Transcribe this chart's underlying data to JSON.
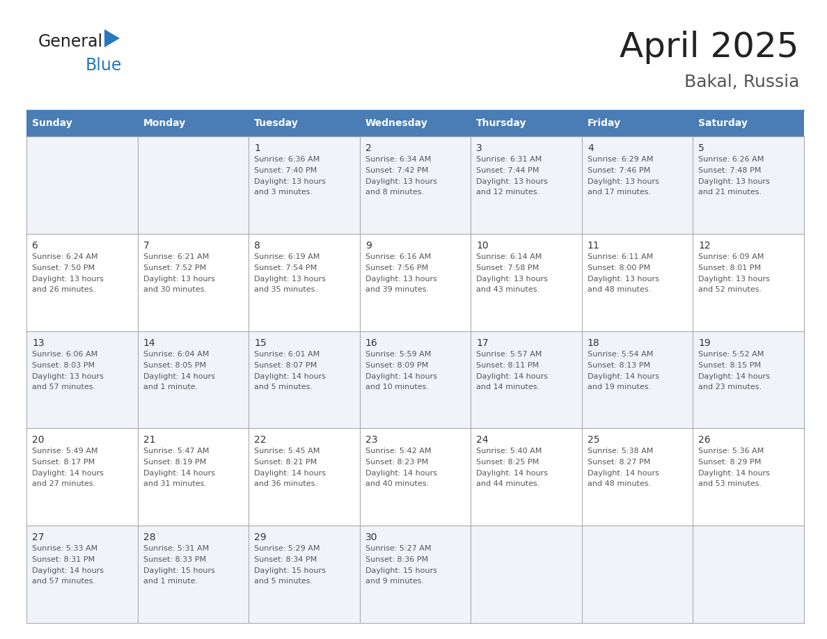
{
  "title": "April 2025",
  "subtitle": "Bakal, Russia",
  "header_bg": "#4a7db5",
  "header_text": "#ffffff",
  "odd_row_bg": "#f0f4f8",
  "even_row_bg": "#ffffff",
  "day_names": [
    "Sunday",
    "Monday",
    "Tuesday",
    "Wednesday",
    "Thursday",
    "Friday",
    "Saturday"
  ],
  "title_color": "#222222",
  "subtitle_color": "#555555",
  "day_number_color": "#333333",
  "cell_text_color": "#555555",
  "general_text_color": "#222222",
  "blue_color": "#2878c0",
  "weeks": [
    [
      {
        "day": null,
        "sunrise": null,
        "sunset": null,
        "daylight": null
      },
      {
        "day": null,
        "sunrise": null,
        "sunset": null,
        "daylight": null
      },
      {
        "day": 1,
        "sunrise": "6:36 AM",
        "sunset": "7:40 PM",
        "daylight": "13 hours\nand 3 minutes."
      },
      {
        "day": 2,
        "sunrise": "6:34 AM",
        "sunset": "7:42 PM",
        "daylight": "13 hours\nand 8 minutes."
      },
      {
        "day": 3,
        "sunrise": "6:31 AM",
        "sunset": "7:44 PM",
        "daylight": "13 hours\nand 12 minutes."
      },
      {
        "day": 4,
        "sunrise": "6:29 AM",
        "sunset": "7:46 PM",
        "daylight": "13 hours\nand 17 minutes."
      },
      {
        "day": 5,
        "sunrise": "6:26 AM",
        "sunset": "7:48 PM",
        "daylight": "13 hours\nand 21 minutes."
      }
    ],
    [
      {
        "day": 6,
        "sunrise": "6:24 AM",
        "sunset": "7:50 PM",
        "daylight": "13 hours\nand 26 minutes."
      },
      {
        "day": 7,
        "sunrise": "6:21 AM",
        "sunset": "7:52 PM",
        "daylight": "13 hours\nand 30 minutes."
      },
      {
        "day": 8,
        "sunrise": "6:19 AM",
        "sunset": "7:54 PM",
        "daylight": "13 hours\nand 35 minutes."
      },
      {
        "day": 9,
        "sunrise": "6:16 AM",
        "sunset": "7:56 PM",
        "daylight": "13 hours\nand 39 minutes."
      },
      {
        "day": 10,
        "sunrise": "6:14 AM",
        "sunset": "7:58 PM",
        "daylight": "13 hours\nand 43 minutes."
      },
      {
        "day": 11,
        "sunrise": "6:11 AM",
        "sunset": "8:00 PM",
        "daylight": "13 hours\nand 48 minutes."
      },
      {
        "day": 12,
        "sunrise": "6:09 AM",
        "sunset": "8:01 PM",
        "daylight": "13 hours\nand 52 minutes."
      }
    ],
    [
      {
        "day": 13,
        "sunrise": "6:06 AM",
        "sunset": "8:03 PM",
        "daylight": "13 hours\nand 57 minutes."
      },
      {
        "day": 14,
        "sunrise": "6:04 AM",
        "sunset": "8:05 PM",
        "daylight": "14 hours\nand 1 minute."
      },
      {
        "day": 15,
        "sunrise": "6:01 AM",
        "sunset": "8:07 PM",
        "daylight": "14 hours\nand 5 minutes."
      },
      {
        "day": 16,
        "sunrise": "5:59 AM",
        "sunset": "8:09 PM",
        "daylight": "14 hours\nand 10 minutes."
      },
      {
        "day": 17,
        "sunrise": "5:57 AM",
        "sunset": "8:11 PM",
        "daylight": "14 hours\nand 14 minutes."
      },
      {
        "day": 18,
        "sunrise": "5:54 AM",
        "sunset": "8:13 PM",
        "daylight": "14 hours\nand 19 minutes."
      },
      {
        "day": 19,
        "sunrise": "5:52 AM",
        "sunset": "8:15 PM",
        "daylight": "14 hours\nand 23 minutes."
      }
    ],
    [
      {
        "day": 20,
        "sunrise": "5:49 AM",
        "sunset": "8:17 PM",
        "daylight": "14 hours\nand 27 minutes."
      },
      {
        "day": 21,
        "sunrise": "5:47 AM",
        "sunset": "8:19 PM",
        "daylight": "14 hours\nand 31 minutes."
      },
      {
        "day": 22,
        "sunrise": "5:45 AM",
        "sunset": "8:21 PM",
        "daylight": "14 hours\nand 36 minutes."
      },
      {
        "day": 23,
        "sunrise": "5:42 AM",
        "sunset": "8:23 PM",
        "daylight": "14 hours\nand 40 minutes."
      },
      {
        "day": 24,
        "sunrise": "5:40 AM",
        "sunset": "8:25 PM",
        "daylight": "14 hours\nand 44 minutes."
      },
      {
        "day": 25,
        "sunrise": "5:38 AM",
        "sunset": "8:27 PM",
        "daylight": "14 hours\nand 48 minutes."
      },
      {
        "day": 26,
        "sunrise": "5:36 AM",
        "sunset": "8:29 PM",
        "daylight": "14 hours\nand 53 minutes."
      }
    ],
    [
      {
        "day": 27,
        "sunrise": "5:33 AM",
        "sunset": "8:31 PM",
        "daylight": "14 hours\nand 57 minutes."
      },
      {
        "day": 28,
        "sunrise": "5:31 AM",
        "sunset": "8:33 PM",
        "daylight": "15 hours\nand 1 minute."
      },
      {
        "day": 29,
        "sunrise": "5:29 AM",
        "sunset": "8:34 PM",
        "daylight": "15 hours\nand 5 minutes."
      },
      {
        "day": 30,
        "sunrise": "5:27 AM",
        "sunset": "8:36 PM",
        "daylight": "15 hours\nand 9 minutes."
      },
      {
        "day": null,
        "sunrise": null,
        "sunset": null,
        "daylight": null
      },
      {
        "day": null,
        "sunrise": null,
        "sunset": null,
        "daylight": null
      },
      {
        "day": null,
        "sunrise": null,
        "sunset": null,
        "daylight": null
      }
    ]
  ]
}
